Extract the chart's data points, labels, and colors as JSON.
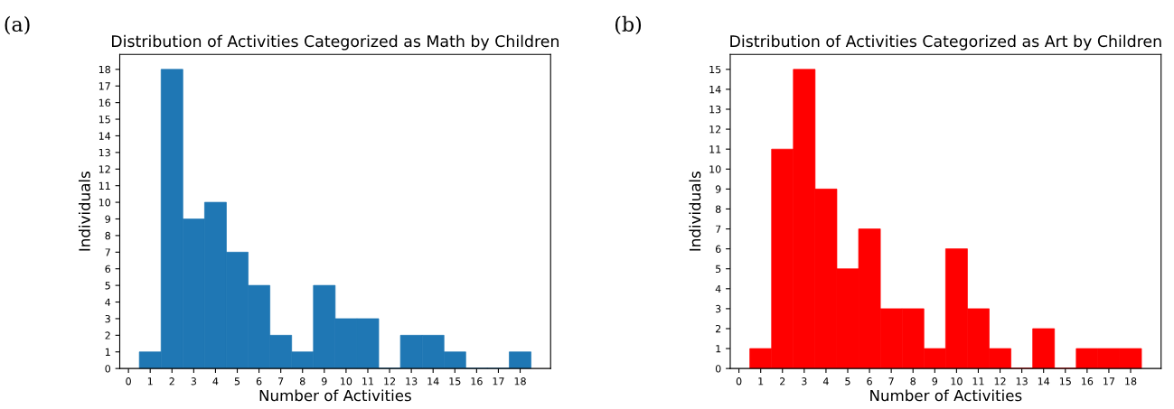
{
  "chart_data": [
    {
      "type": "histogram",
      "title": "Distribution of Activities Categorized as Math by Children",
      "xlabel": "Number of Activities",
      "ylabel": "Individuals",
      "annotations": [
        "(a)"
      ],
      "bins": [
        0.5,
        1.5,
        2.5,
        3.5,
        4.5,
        5.5,
        6.5,
        7.5,
        8.5,
        9.5,
        10.5,
        11.5,
        12.5,
        13.5,
        14.5,
        15.5,
        16.5,
        17.5,
        18.5
      ],
      "values": [
        1,
        18,
        9,
        10,
        7,
        5,
        2,
        1,
        5,
        3,
        3,
        0,
        2,
        2,
        1,
        0,
        0,
        1
      ],
      "color": "#1f77b4",
      "xlim": [
        -0.4,
        19.4
      ],
      "xticks": [
        0,
        1,
        2,
        3,
        4,
        5,
        6,
        7,
        8,
        9,
        10,
        11,
        12,
        13,
        14,
        15,
        16,
        17,
        18
      ],
      "ylim": [
        0,
        18.9
      ],
      "yticks": [
        0,
        1,
        2,
        3,
        4,
        5,
        6,
        7,
        8,
        9,
        10,
        11,
        12,
        13,
        14,
        15,
        16,
        17,
        18
      ],
      "grid": false
    },
    {
      "type": "histogram",
      "title": "Distribution of Activities Categorized as Art by Children",
      "xlabel": "Number of Activities",
      "ylabel": "Individuals",
      "annotations": [
        "(b)"
      ],
      "bins": [
        0.5,
        1.5,
        2.5,
        3.5,
        4.5,
        5.5,
        6.5,
        7.5,
        8.5,
        9.5,
        10.5,
        11.5,
        12.5,
        13.5,
        14.5,
        15.5,
        16.5,
        17.5,
        18.5
      ],
      "values": [
        1,
        11,
        15,
        9,
        5,
        7,
        3,
        3,
        1,
        6,
        3,
        1,
        0,
        2,
        0,
        1,
        1,
        1
      ],
      "color": "#ff0000",
      "xlim": [
        -0.4,
        19.4
      ],
      "xticks": [
        0,
        1,
        2,
        3,
        4,
        5,
        6,
        7,
        8,
        9,
        10,
        11,
        12,
        13,
        14,
        15,
        16,
        17,
        18
      ],
      "ylim": [
        0,
        15.75
      ],
      "yticks": [
        0,
        1,
        2,
        3,
        4,
        5,
        6,
        7,
        8,
        9,
        10,
        11,
        12,
        13,
        14,
        15
      ],
      "grid": false
    }
  ]
}
